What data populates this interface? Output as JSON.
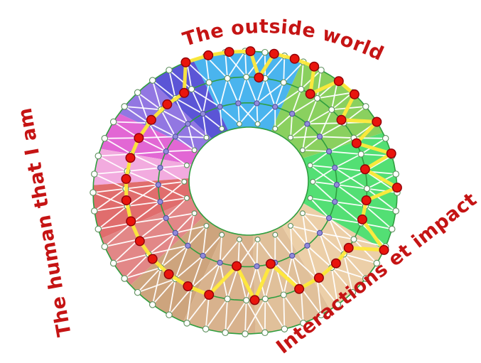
{
  "labels": {
    "color": "#c51414",
    "top": {
      "text": "The outside world"
    },
    "left": {
      "text": "The human that I am"
    },
    "bottom_right": {
      "text": "Interactions et impact"
    }
  },
  "chart_data": {
    "type": "radial-network-wheel",
    "description": "Torus wheel of colored sectors with four concentric node rings, white triangulated mesh, violet inner nodes, and a chain of red nodes linked by a yellow path",
    "sectors": [
      {
        "from": -24,
        "to": 25,
        "color": "#53df74",
        "name": "green"
      },
      {
        "from": 25,
        "to": 68,
        "color": "#8ad05f",
        "name": "green-light"
      },
      {
        "from": 68,
        "to": 110,
        "color": "#4ab4ee",
        "name": "blue"
      },
      {
        "from": 110,
        "to": 128,
        "color": "#5b55d6",
        "name": "indigo"
      },
      {
        "from": 128,
        "to": 146,
        "color": "#9277e2",
        "name": "purple"
      },
      {
        "from": 146,
        "to": 162,
        "color": "#e267d4",
        "name": "magenta"
      },
      {
        "from": 162,
        "to": 177,
        "color": "#f2abdf",
        "name": "pink"
      },
      {
        "from": 177,
        "to": 199,
        "color": "#e06d6d",
        "name": "red"
      },
      {
        "from": 199,
        "to": 221,
        "color": "#e28787",
        "name": "salmon"
      },
      {
        "from": 221,
        "to": 246,
        "color": "#cda47d",
        "name": "tan-dark"
      },
      {
        "from": 246,
        "to": 274,
        "color": "#d8b28d",
        "name": "tan"
      },
      {
        "from": 274,
        "to": 304,
        "color": "#e0c09a",
        "name": "tan-light"
      },
      {
        "from": 304,
        "to": 336,
        "color": "#eccfa8",
        "name": "peach"
      }
    ],
    "rings": {
      "outer": {
        "t": 1.0,
        "nodes": 48,
        "node_color": "#ffffff",
        "node_stroke": "#5c8f5c",
        "node_r": 4.2
      },
      "mid": {
        "t": 0.66,
        "nodes": 40,
        "node_color": "#ffffff",
        "node_stroke": "#5c8f5c",
        "node_r": 4.0
      },
      "inner_mid": {
        "t": 0.32,
        "nodes": 30,
        "node_color": "#938bdb",
        "node_stroke": "#4f4f9f",
        "node_r": 3.6
      },
      "inner": {
        "t": 0.05,
        "nodes": 22,
        "node_color": "#ffffff",
        "node_stroke": "#5c8f5c",
        "node_r": 3.4
      }
    },
    "red_path": [
      {
        "ring": "outer",
        "angle": 113
      },
      {
        "ring": "outer",
        "angle": 104
      },
      {
        "ring": "outer",
        "angle": 96
      },
      {
        "ring": "outer",
        "angle": 88
      },
      {
        "ring": "mid",
        "angle": 84
      },
      {
        "ring": "outer",
        "angle": 79
      },
      {
        "ring": "outer",
        "angle": 71
      },
      {
        "ring": "outer",
        "angle": 63
      },
      {
        "ring": "mid",
        "angle": 58
      },
      {
        "ring": "outer",
        "angle": 52
      },
      {
        "ring": "outer",
        "angle": 44
      },
      {
        "ring": "mid",
        "angle": 38
      },
      {
        "ring": "outer",
        "angle": 30
      },
      {
        "ring": "mid",
        "angle": 24
      },
      {
        "ring": "outer",
        "angle": 16
      },
      {
        "ring": "mid",
        "angle": 10
      },
      {
        "ring": "outer",
        "angle": 2
      },
      {
        "ring": "mid",
        "angle": -6
      },
      {
        "ring": "mid",
        "angle": -16
      },
      {
        "ring": "outer",
        "angle": -24
      },
      {
        "ring": "mid",
        "angle": -32
      },
      {
        "ring": "mid",
        "angle": -42
      },
      {
        "ring": "mid",
        "angle": -53
      },
      {
        "ring": "mid",
        "angle": -64
      },
      {
        "ring": "inner_mid",
        "angle": -75
      },
      {
        "ring": "mid",
        "angle": -86
      },
      {
        "ring": "inner_mid",
        "angle": -97
      },
      {
        "ring": "mid",
        "angle": -108
      },
      {
        "ring": "mid",
        "angle": -119
      },
      {
        "ring": "mid",
        "angle": -130
      },
      {
        "ring": "mid",
        "angle": -141
      },
      {
        "ring": "mid",
        "angle": -152
      },
      {
        "ring": "mid",
        "angle": -163
      },
      {
        "ring": "mid",
        "angle": -174
      },
      {
        "ring": "mid",
        "angle": 175
      },
      {
        "ring": "mid",
        "angle": 164
      },
      {
        "ring": "mid",
        "angle": 153
      },
      {
        "ring": "mid",
        "angle": 142
      },
      {
        "ring": "mid",
        "angle": 131
      },
      {
        "ring": "mid",
        "angle": 121
      }
    ],
    "colors": {
      "ring_line": "#2f9e3f",
      "mesh": "#ffffff",
      "red_node": "#e8150d",
      "red_node_stroke": "#8f0008",
      "yellow_path": "#ffe93a"
    }
  }
}
